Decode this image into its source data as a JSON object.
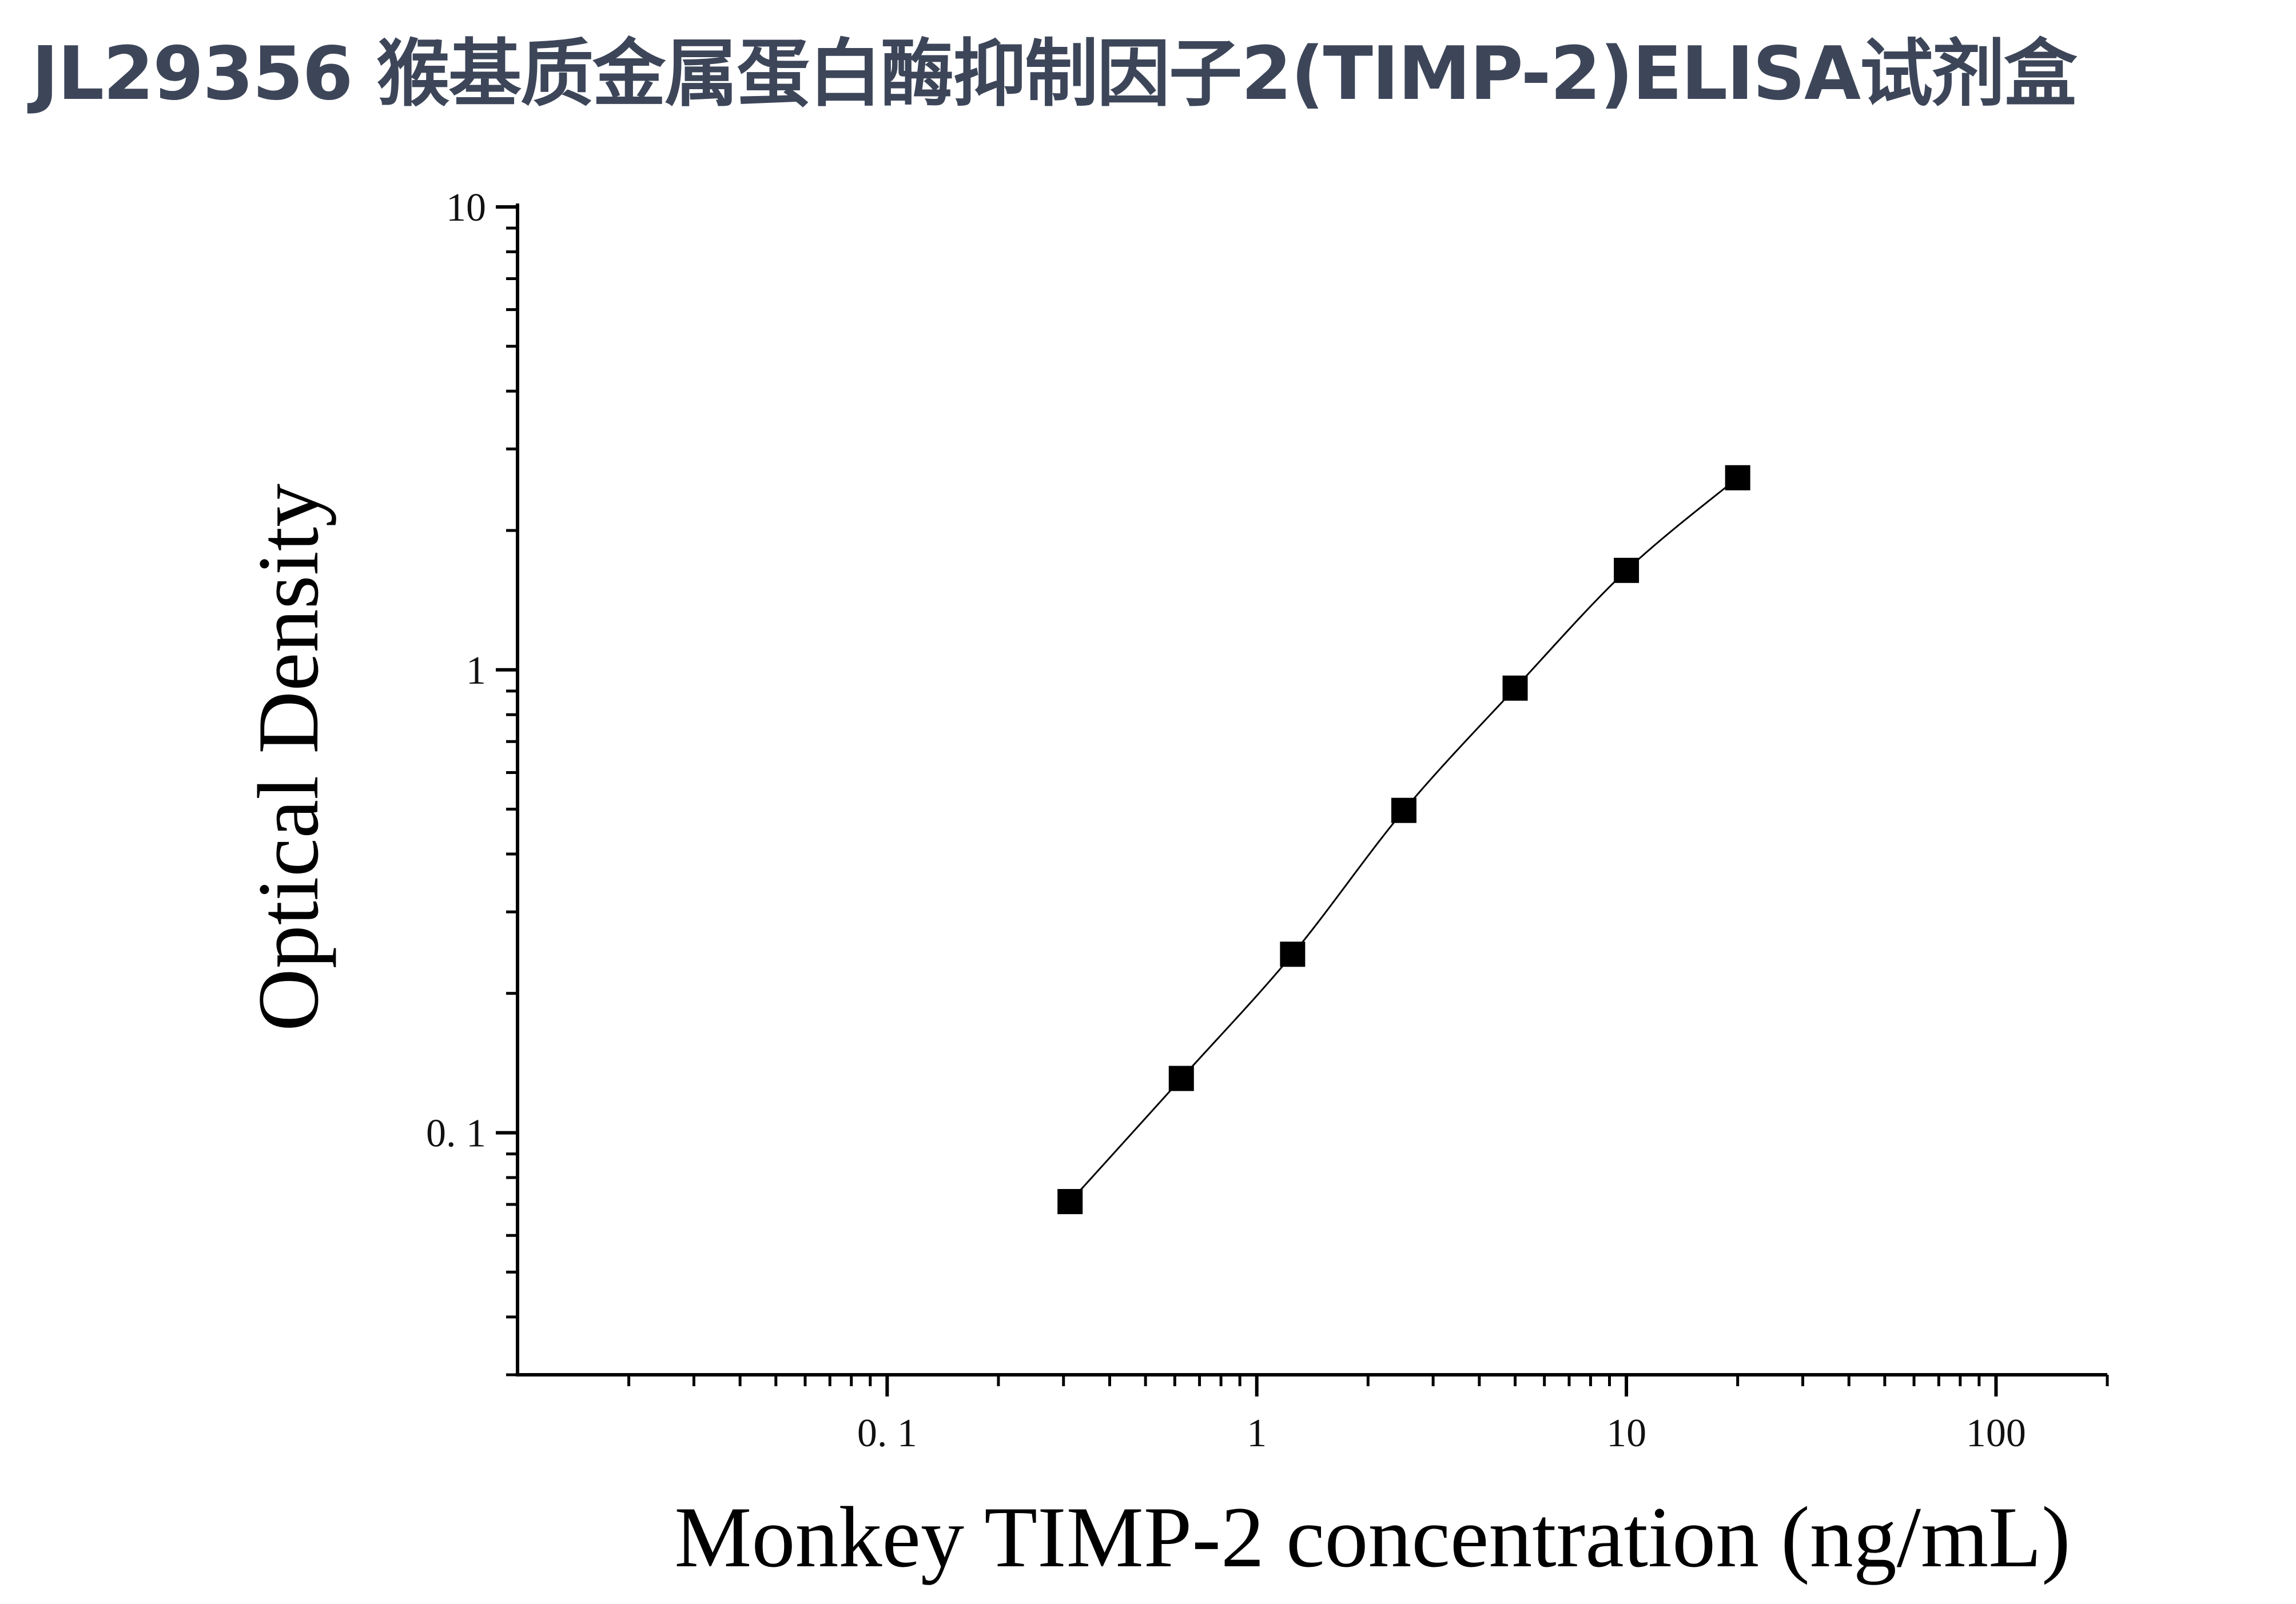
{
  "title": "JL29356 猴基质金属蛋白酶抑制因子2(TIMP-2)ELISA试剂盒",
  "chart_data": {
    "type": "scatter",
    "title": "",
    "xlabel": "Monkey TIMP-2 concentration (ng/mL)",
    "ylabel": "Optical Density",
    "xscale": "log",
    "yscale": "log",
    "xlim": [
      0.01,
      200
    ],
    "ylim": [
      0.03,
      10
    ],
    "x_ticks": [
      {
        "value": 0.1,
        "label": "0. 1"
      },
      {
        "value": 1,
        "label": "1"
      },
      {
        "value": 10,
        "label": "10"
      },
      {
        "value": 100,
        "label": "100"
      }
    ],
    "y_ticks": [
      {
        "value": 0.1,
        "label": "0. 1"
      },
      {
        "value": 1,
        "label": "1"
      },
      {
        "value": 10,
        "label": "10"
      }
    ],
    "series": [
      {
        "marker": "square",
        "line": "smooth",
        "color": "#000000",
        "x": [
          0.3125,
          0.625,
          1.25,
          2.5,
          5,
          10,
          20
        ],
        "y": [
          0.071,
          0.131,
          0.243,
          0.497,
          0.913,
          1.64,
          2.6
        ]
      }
    ],
    "grid": false,
    "legend": "none"
  }
}
